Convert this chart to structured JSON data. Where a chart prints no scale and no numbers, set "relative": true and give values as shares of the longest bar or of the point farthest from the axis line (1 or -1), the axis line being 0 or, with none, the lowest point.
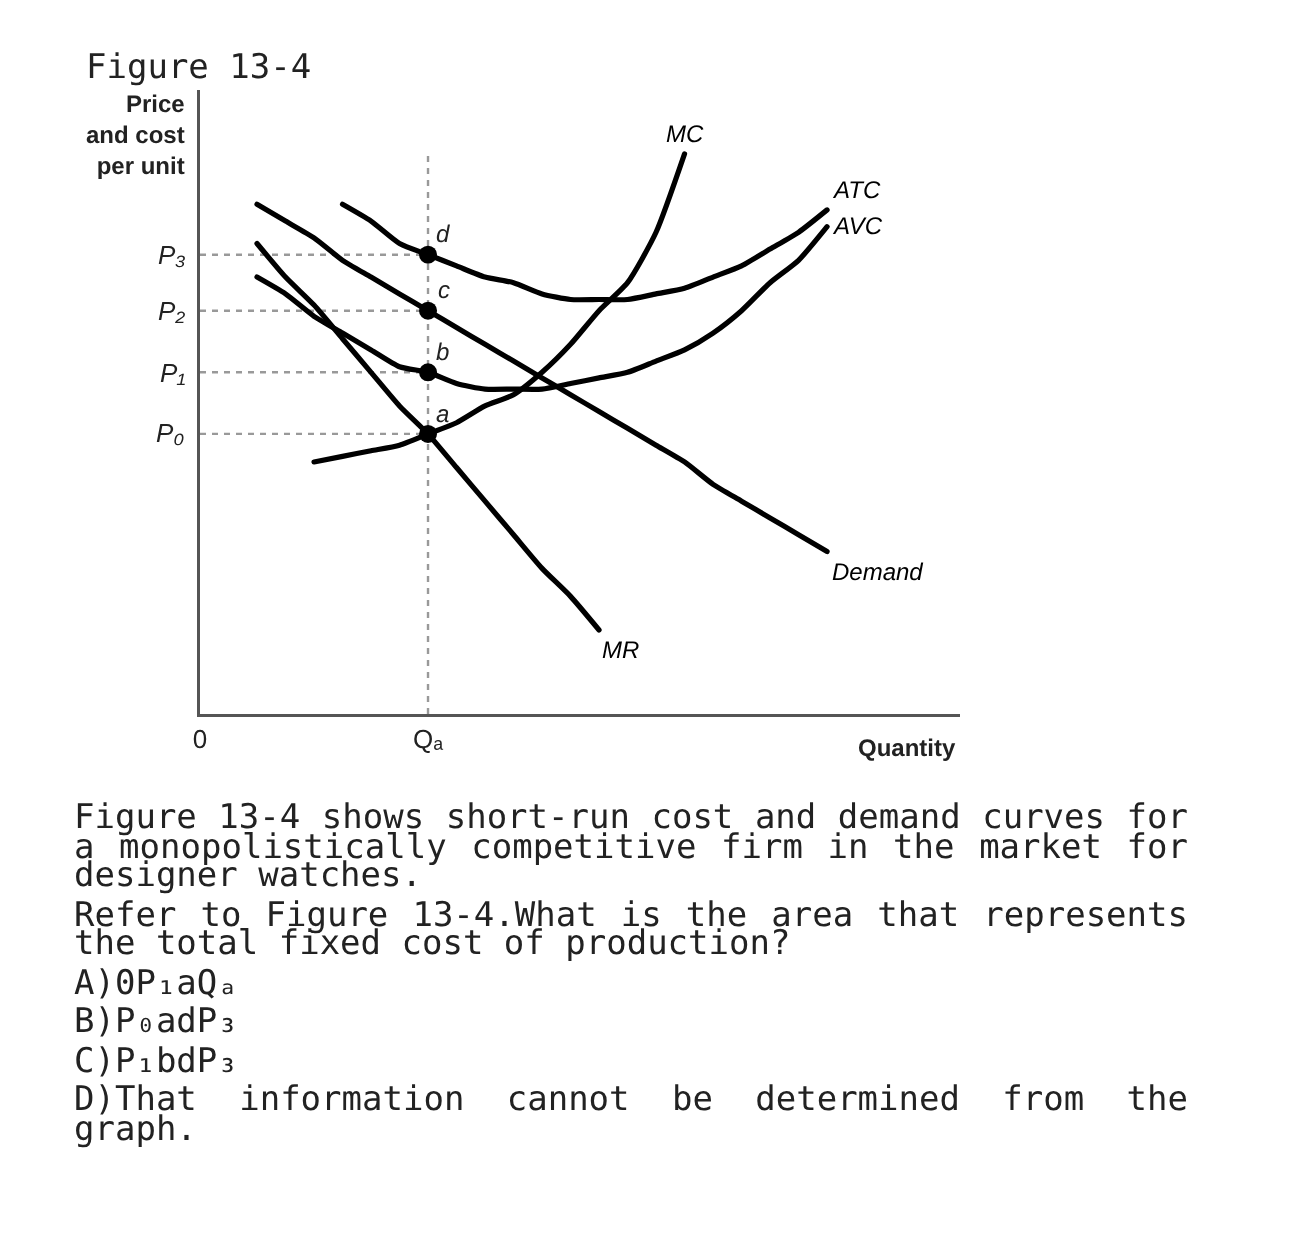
{
  "chart_data": {
    "type": "line",
    "title": "Figure 13-4",
    "xlabel": "Quantity",
    "ylabel": "Price and cost per unit",
    "relative": true,
    "line_style": "solid",
    "categories": [
      "0",
      null,
      null,
      null,
      null,
      null,
      null,
      null,
      "Qₐ",
      null,
      null,
      null,
      null,
      null,
      null,
      null,
      null,
      null,
      null,
      null,
      null,
      null,
      null
    ],
    "series": [
      {
        "name": "MC",
        "color": "#000000",
        "values": [
          null,
          null,
          null,
          null,
          0.45,
          0.46,
          0.47,
          0.48,
          0.5,
          0.52,
          0.55,
          0.57,
          0.61,
          0.66,
          0.72,
          0.77,
          0.86,
          1.0,
          null,
          null,
          null,
          null,
          null
        ]
      },
      {
        "name": "ATC",
        "color": "#000000",
        "values": [
          null,
          null,
          null,
          null,
          null,
          0.91,
          0.88,
          0.84,
          0.82,
          0.8,
          0.78,
          0.77,
          0.75,
          0.74,
          0.74,
          0.74,
          0.75,
          0.76,
          0.78,
          0.8,
          0.83,
          0.86,
          0.9
        ]
      },
      {
        "name": "AVC",
        "color": "#000000",
        "values": [
          null,
          null,
          0.78,
          0.75,
          0.71,
          0.68,
          0.65,
          0.62,
          0.61,
          0.59,
          0.58,
          0.58,
          0.58,
          0.59,
          0.6,
          0.61,
          0.63,
          0.65,
          0.68,
          0.72,
          0.77,
          0.81,
          0.87
        ]
      },
      {
        "name": "Demand",
        "color": "#000000",
        "values": [
          null,
          null,
          0.91,
          0.88,
          0.85,
          0.81,
          0.78,
          0.75,
          0.72,
          0.69,
          0.66,
          0.63,
          0.6,
          0.57,
          0.54,
          0.51,
          0.48,
          0.45,
          0.41,
          0.38,
          0.35,
          0.32,
          0.29
        ]
      },
      {
        "name": "MR",
        "color": "#000000",
        "values": [
          null,
          null,
          0.84,
          0.78,
          0.73,
          0.67,
          0.61,
          0.55,
          0.5,
          0.44,
          0.38,
          0.32,
          0.26,
          0.21,
          0.15,
          null,
          null,
          null,
          null,
          null,
          null,
          null,
          null
        ]
      },
      {
        "type": "scatter",
        "color": "#000000",
        "marker": "circle",
        "x": [
          "Qₐ",
          "Qₐ",
          "Qₐ",
          "Qₐ"
        ],
        "values": [
          0.5,
          0.61,
          0.72,
          0.82
        ]
      }
    ],
    "ref_lines": [
      {
        "axis": "y",
        "value": 0.82,
        "label": "P₃",
        "color": "#999999",
        "line_style": "dotted"
      },
      {
        "axis": "y",
        "value": 0.72,
        "label": "P₂",
        "color": "#999999",
        "line_style": "dotted"
      },
      {
        "axis": "y",
        "value": 0.61,
        "label": "P₁",
        "color": "#999999",
        "line_style": "dotted"
      },
      {
        "axis": "y",
        "value": 0.5,
        "label": "P₀",
        "color": "#999999",
        "line_style": "dotted"
      },
      {
        "axis": "x",
        "value": "Qₐ",
        "color": "#999999",
        "line_style": "dotted"
      }
    ],
    "annotations": [
      {
        "text": "d",
        "x": "Qₐ",
        "y": 0.82
      },
      {
        "text": "c",
        "x": "Qₐ",
        "y": 0.72
      },
      {
        "text": "b",
        "x": "Qₐ",
        "y": 0.61
      },
      {
        "text": "a",
        "x": "Qₐ",
        "y": 0.5
      },
      "Figure 13-4 shows short-run cost and demand curves for a monopolistically competitive firm in the market for designer watches.",
      "Refer to Figure 13-4.What is the area that represents the total fixed cost of production?",
      "A)0P₁aQₐ",
      "B)P₀adP₃",
      "C)P₁bdP₃",
      "D)That information cannot be determined from the graph."
    ]
  }
}
